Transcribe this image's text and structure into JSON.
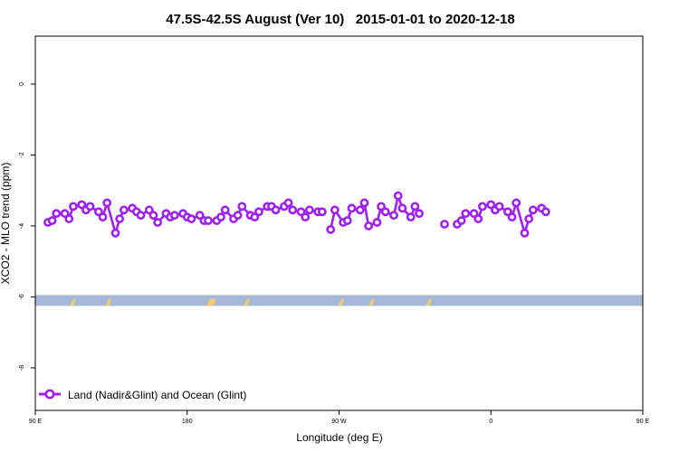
{
  "chart_data": {
    "type": "line",
    "title": "47.5S-42.5S August (Ver 10)   2015-01-01 to 2020-12-18",
    "xlabel": "Longitude (deg E)",
    "ylabel": "XCO2 - MLO trend (ppm)",
    "xlim": [
      90,
      450
    ],
    "ylim": [
      -9.2,
      1.35
    ],
    "x_ticks": [
      {
        "value": 90,
        "label": "90 E"
      },
      {
        "value": 180,
        "label": "180"
      },
      {
        "value": 270,
        "label": "90 W"
      },
      {
        "value": 360,
        "label": "0"
      },
      {
        "value": 450,
        "label": "90 E"
      },
      {
        "value": 540,
        "label": "180"
      }
    ],
    "y_ticks": [
      {
        "value": 0,
        "label": "0"
      },
      {
        "value": -2,
        "label": "-2"
      },
      {
        "value": -4,
        "label": "-4"
      },
      {
        "value": -6,
        "label": "-6"
      },
      {
        "value": -8,
        "label": "-8"
      }
    ],
    "grid": false,
    "legend_position": "bottom-left",
    "colors": {
      "series": "#a020f0",
      "ocean_band": "#a5b8d9",
      "land_band": "#f2cc70"
    },
    "series": [
      {
        "name": "Land (Nadir&Glint) and Ocean (Glint)",
        "segments": [
          [
            [
              97.5,
              -3.9
            ],
            [
              100,
              -3.85
            ],
            [
              102.5,
              -3.65
            ],
            [
              107.5,
              -3.65
            ],
            [
              110,
              -3.8
            ],
            [
              112.5,
              -3.45
            ],
            [
              117.5,
              -3.4
            ],
            [
              120,
              -3.55
            ],
            [
              122.5,
              -3.45
            ],
            [
              127.5,
              -3.6
            ],
            [
              130,
              -3.75
            ],
            [
              132.5,
              -3.35
            ],
            [
              137.5,
              -4.2
            ],
            [
              140,
              -3.8
            ],
            [
              142.5,
              -3.55
            ],
            [
              147.5,
              -3.5
            ],
            [
              150,
              -3.6
            ],
            [
              152.5,
              -3.7
            ],
            [
              157.5,
              -3.55
            ],
            [
              160,
              -3.7
            ],
            [
              162.5,
              -3.9
            ],
            [
              167.5,
              -3.65
            ],
            [
              170,
              -3.75
            ],
            [
              172.5,
              -3.7
            ],
            [
              177.5,
              -3.65
            ],
            [
              180,
              -3.75
            ],
            [
              182.5,
              -3.8
            ],
            [
              187.5,
              -3.7
            ],
            [
              190,
              -3.85
            ],
            [
              192.5,
              -3.85
            ],
            [
              197.5,
              -3.85
            ],
            [
              200,
              -3.75
            ],
            [
              202.5,
              -3.55
            ],
            [
              207.5,
              -3.8
            ],
            [
              210,
              -3.7
            ],
            [
              212.5,
              -3.45
            ],
            [
              217.5,
              -3.7
            ],
            [
              220,
              -3.75
            ],
            [
              222.5,
              -3.6
            ],
            [
              227.5,
              -3.45
            ],
            [
              230,
              -3.45
            ],
            [
              232.5,
              -3.55
            ],
            [
              237.5,
              -3.45
            ],
            [
              240,
              -3.35
            ],
            [
              242.5,
              -3.55
            ],
            [
              247.5,
              -3.6
            ],
            [
              250,
              -3.75
            ],
            [
              252.5,
              -3.55
            ],
            [
              257.5,
              -3.6
            ],
            [
              260,
              -3.6
            ]
          ],
          [
            [
              265,
              -4.1
            ],
            [
              267.5,
              -3.55
            ],
            [
              272.5,
              -3.9
            ],
            [
              275,
              -3.85
            ],
            [
              277.5,
              -3.5
            ],
            [
              282.5,
              -3.55
            ],
            [
              285,
              -3.35
            ],
            [
              287.5,
              -4.0
            ],
            [
              292.5,
              -3.9
            ],
            [
              295,
              -3.45
            ],
            [
              297.5,
              -3.6
            ],
            [
              302.5,
              -3.7
            ],
            [
              305,
              -3.15
            ],
            [
              307.5,
              -3.5
            ],
            [
              312.5,
              -3.75
            ],
            [
              315,
              -3.45
            ],
            [
              317.5,
              -3.65
            ]
          ],
          [
            [
              332.5,
              -3.95
            ]
          ],
          [
            [
              340,
              -3.95
            ],
            [
              342.5,
              -3.85
            ],
            [
              345,
              -3.65
            ],
            [
              350,
              -3.65
            ],
            [
              352.5,
              -3.8
            ],
            [
              355,
              -3.45
            ],
            [
              360,
              -3.4
            ],
            [
              362.5,
              -3.55
            ],
            [
              365,
              -3.45
            ],
            [
              370,
              -3.6
            ],
            [
              372.5,
              -3.75
            ],
            [
              375,
              -3.35
            ],
            [
              380,
              -4.2
            ],
            [
              382.5,
              -3.8
            ],
            [
              385,
              -3.55
            ],
            [
              390,
              -3.5
            ],
            [
              392.5,
              -3.6
            ]
          ]
        ]
      }
    ],
    "terrain_band": {
      "y": -6.1,
      "land_marks_x": [
        112,
        133,
        193,
        194,
        195,
        215,
        271,
        289,
        323
      ]
    }
  }
}
